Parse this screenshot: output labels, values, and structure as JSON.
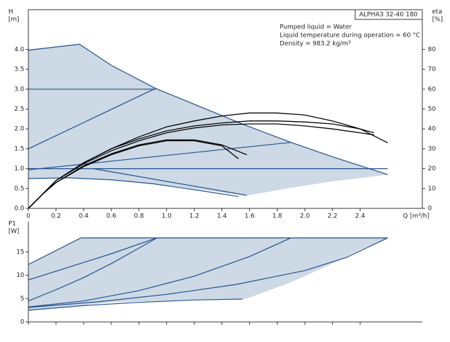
{
  "chart_data": [
    {
      "type": "line",
      "title": "ALPHA3 32-40 180",
      "annotations": [
        "Pumped liquid = Water",
        "Liquid temperature during operation = 60 °C",
        "Density = 983.2 kg/m³"
      ],
      "ylabel": [
        "H",
        "[m]"
      ],
      "y2label": [
        "eta",
        "[%]"
      ],
      "xlabel": "Q [m³/h]",
      "xlim": [
        0,
        2.85
      ],
      "ylim": [
        0,
        5.0
      ],
      "y2lim": [
        0,
        100
      ],
      "grid": false,
      "xticks": [
        {
          "value": 0,
          "label": "0"
        },
        0.2,
        0.4,
        0.6,
        0.8,
        {
          "value": 1,
          "label": "1.0"
        },
        1.2,
        1.4,
        1.6,
        1.8,
        {
          "value": 2,
          "label": "2.0"
        },
        2.2,
        2.4
      ],
      "yticks": [
        {
          "value": 0,
          "label": "0.0"
        },
        0.5,
        {
          "value": 1,
          "label": "1.0"
        },
        1.5,
        {
          "value": 2,
          "label": "2.0"
        },
        2.5,
        {
          "value": 3,
          "label": "3.0"
        },
        3.5,
        {
          "value": 4,
          "label": "4.0"
        }
      ],
      "y2ticks": [
        0,
        10,
        20,
        30,
        40,
        50,
        60,
        70,
        80
      ],
      "series": [
        {
          "kind": "area",
          "color": "#cdd9e5",
          "x": [
            0,
            0.37,
            0.6,
            0.92,
            1.2,
            1.55,
            1.9,
            2.2,
            2.6,
            2.2,
            1.9,
            1.58,
            1.3,
            1.0,
            0.6,
            0.3,
            0
          ],
          "values": [
            4.0,
            4.13,
            3.6,
            3.02,
            2.62,
            2.12,
            1.66,
            1.3,
            0.85,
            0.68,
            0.52,
            0.32,
            0.45,
            0.58,
            0.7,
            0.75,
            0.75
          ]
        },
        {
          "kind": "line",
          "color": "#1f4e8c",
          "x": [
            0,
            0.37,
            0.6,
            0.92,
            1.2,
            1.55,
            1.9,
            2.2,
            2.6
          ],
          "values": [
            3.98,
            4.13,
            3.6,
            3.02,
            2.62,
            2.12,
            1.66,
            1.3,
            0.85
          ]
        },
        {
          "kind": "line",
          "color": "#1f4e8c",
          "x": [
            0,
            0.92
          ],
          "values": [
            3.0,
            3.0
          ]
        },
        {
          "kind": "line",
          "color": "#1f4e8c",
          "x": [
            0,
            0.92
          ],
          "values": [
            1.5,
            3.02
          ]
        },
        {
          "kind": "line",
          "color": "#1f4e8c",
          "x": [
            0,
            2.6
          ],
          "values": [
            1.0,
            1.0
          ]
        },
        {
          "kind": "line",
          "color": "#1f4e8c",
          "x": [
            0,
            1.9
          ],
          "values": [
            0.97,
            1.66
          ]
        },
        {
          "kind": "line",
          "color": "#1f4e8c",
          "x": [
            0,
            0.3,
            0.6,
            0.9,
            1.2,
            1.52
          ],
          "values": [
            0.75,
            0.77,
            0.72,
            0.62,
            0.47,
            0.3
          ]
        },
        {
          "kind": "line",
          "color": "#1f4e8c",
          "x": [
            0.47,
            1.58
          ],
          "values": [
            1.0,
            0.33
          ]
        },
        {
          "kind": "line",
          "color": "#000000",
          "axis": "y2",
          "x": [
            0,
            0.1,
            0.2,
            0.4,
            0.6,
            0.8,
            1.0,
            1.2,
            1.4,
            1.6,
            1.8,
            2.0,
            2.2,
            2.4,
            2.6
          ],
          "values": [
            0,
            7,
            14,
            23,
            30,
            36,
            41,
            44,
            46.5,
            48,
            48,
            47,
            44,
            40,
            33
          ]
        },
        {
          "kind": "line",
          "color": "#000000",
          "axis": "y2",
          "x": [
            0,
            0.1,
            0.2,
            0.4,
            0.6,
            0.8,
            1.0,
            1.2,
            1.4,
            1.6,
            1.8,
            2.0,
            2.2,
            2.4,
            2.5
          ],
          "values": [
            0,
            7,
            14,
            23,
            30,
            35,
            39,
            41.5,
            43,
            44,
            44,
            43.5,
            42.5,
            40,
            38
          ]
        },
        {
          "kind": "line",
          "color": "#000000",
          "axis": "y2",
          "x": [
            0,
            0.1,
            0.2,
            0.4,
            0.6,
            0.8,
            1.0,
            1.2,
            1.4,
            1.6,
            1.8,
            2.0,
            2.2,
            2.4,
            2.5
          ],
          "values": [
            0,
            7,
            14,
            22.5,
            29,
            34,
            38,
            40.5,
            42,
            42.5,
            42.5,
            41.5,
            40,
            38,
            37
          ]
        },
        {
          "kind": "line",
          "color": "#000000",
          "axis": "y2",
          "x": [
            0,
            0.1,
            0.2,
            0.4,
            0.6,
            0.8,
            1.0,
            1.2,
            1.4,
            1.58
          ],
          "values": [
            0,
            7,
            13,
            21.5,
            27.5,
            32,
            34.5,
            34.5,
            32,
            27
          ]
        },
        {
          "kind": "line",
          "color": "#000000",
          "axis": "y2",
          "x": [
            0,
            0.1,
            0.2,
            0.4,
            0.6,
            0.8,
            1.0,
            1.2,
            1.4,
            1.52
          ],
          "values": [
            0,
            7,
            13,
            21,
            27,
            31.5,
            34,
            34,
            31.5,
            25
          ]
        }
      ]
    },
    {
      "type": "line",
      "ylabel": [
        "P1",
        "[W]"
      ],
      "xlim": [
        0,
        2.85
      ],
      "ylim": [
        0,
        21.5
      ],
      "grid": false,
      "xticks": [
        0,
        0.2,
        0.4,
        0.6,
        0.8,
        1,
        1.2,
        1.4,
        1.6,
        1.8,
        2,
        2.2,
        2.4
      ],
      "yticks": [
        0,
        5,
        10,
        15
      ],
      "series": [
        {
          "kind": "area",
          "color": "#cdd9e5",
          "x": [
            0,
            0.38,
            2.6,
            2.4,
            2.2,
            1.9,
            1.58,
            1.2,
            0.6,
            0
          ],
          "values": [
            12.3,
            18,
            18,
            15.5,
            12.5,
            8.5,
            5,
            4.8,
            4.2,
            2.5
          ]
        },
        {
          "kind": "line",
          "color": "#1f4e8c",
          "x": [
            0,
            0.38,
            2.6
          ],
          "values": [
            12.3,
            18,
            18
          ]
        },
        {
          "kind": "line",
          "color": "#1f4e8c",
          "x": [
            0,
            0.3,
            0.6,
            0.93
          ],
          "values": [
            9,
            11.8,
            14.6,
            18
          ]
        },
        {
          "kind": "line",
          "color": "#1f4e8c",
          "x": [
            0,
            0.2,
            0.4,
            0.6,
            0.8,
            0.93
          ],
          "values": [
            4.5,
            6.9,
            9.5,
            12.5,
            15.8,
            18
          ]
        },
        {
          "kind": "line",
          "color": "#1f4e8c",
          "x": [
            0,
            0.4,
            0.8,
            1.2,
            1.6,
            1.9
          ],
          "values": [
            3.2,
            4.5,
            6.7,
            9.8,
            14,
            18
          ]
        },
        {
          "kind": "line",
          "color": "#1f4e8c",
          "x": [
            0,
            0.5,
            1.0,
            1.5,
            2.0,
            2.3,
            2.6
          ],
          "values": [
            3.1,
            4.3,
            5.9,
            8,
            11,
            13.8,
            18
          ]
        },
        {
          "kind": "line",
          "color": "#1f4e8c",
          "x": [
            0,
            0.4,
            0.8,
            1.2,
            1.55
          ],
          "values": [
            2.5,
            3.5,
            4.2,
            4.7,
            4.9
          ]
        }
      ]
    }
  ]
}
